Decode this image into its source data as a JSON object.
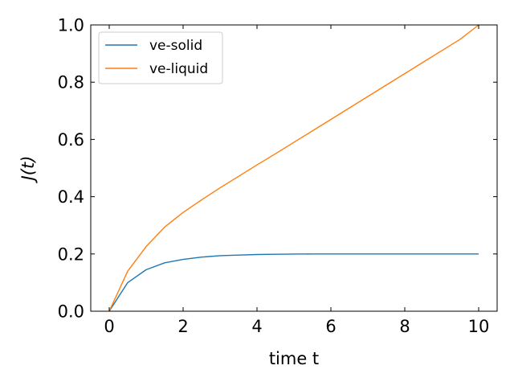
{
  "chart_data": {
    "type": "line",
    "title": "",
    "xlabel": "time t",
    "ylabel": "J(t)",
    "xlim": [
      -0.5,
      10.5
    ],
    "ylim": [
      0.0,
      1.0
    ],
    "xticks": [
      0,
      2,
      4,
      6,
      8,
      10
    ],
    "yticks": [
      0.0,
      0.2,
      0.4,
      0.6,
      0.8,
      1.0
    ],
    "xtick_labels": [
      "0",
      "2",
      "4",
      "6",
      "8",
      "10"
    ],
    "ytick_labels": [
      "0.0",
      "0.2",
      "0.4",
      "0.6",
      "0.8",
      "1.0"
    ],
    "legend_position": "top-left",
    "grid": false,
    "x": [
      0,
      0.5,
      1,
      1.5,
      2,
      2.5,
      3,
      3.5,
      4,
      4.5,
      5,
      5.5,
      6,
      6.5,
      7,
      7.5,
      8,
      8.5,
      9,
      9.5,
      10
    ],
    "series": [
      {
        "name": "ve-solid",
        "color": "#1f77b4",
        "values": [
          0.0,
          0.1,
          0.145,
          0.169,
          0.181,
          0.189,
          0.194,
          0.196,
          0.198,
          0.199,
          0.1995,
          0.2,
          0.2,
          0.2,
          0.2,
          0.2,
          0.2,
          0.2,
          0.2,
          0.2,
          0.2
        ]
      },
      {
        "name": "ve-liquid",
        "color": "#ff7f0e",
        "values": [
          0.0,
          0.14,
          0.226,
          0.294,
          0.345,
          0.389,
          0.431,
          0.471,
          0.511,
          0.55,
          0.59,
          0.63,
          0.67,
          0.71,
          0.75,
          0.79,
          0.83,
          0.87,
          0.91,
          0.95,
          1.0
        ]
      }
    ]
  }
}
